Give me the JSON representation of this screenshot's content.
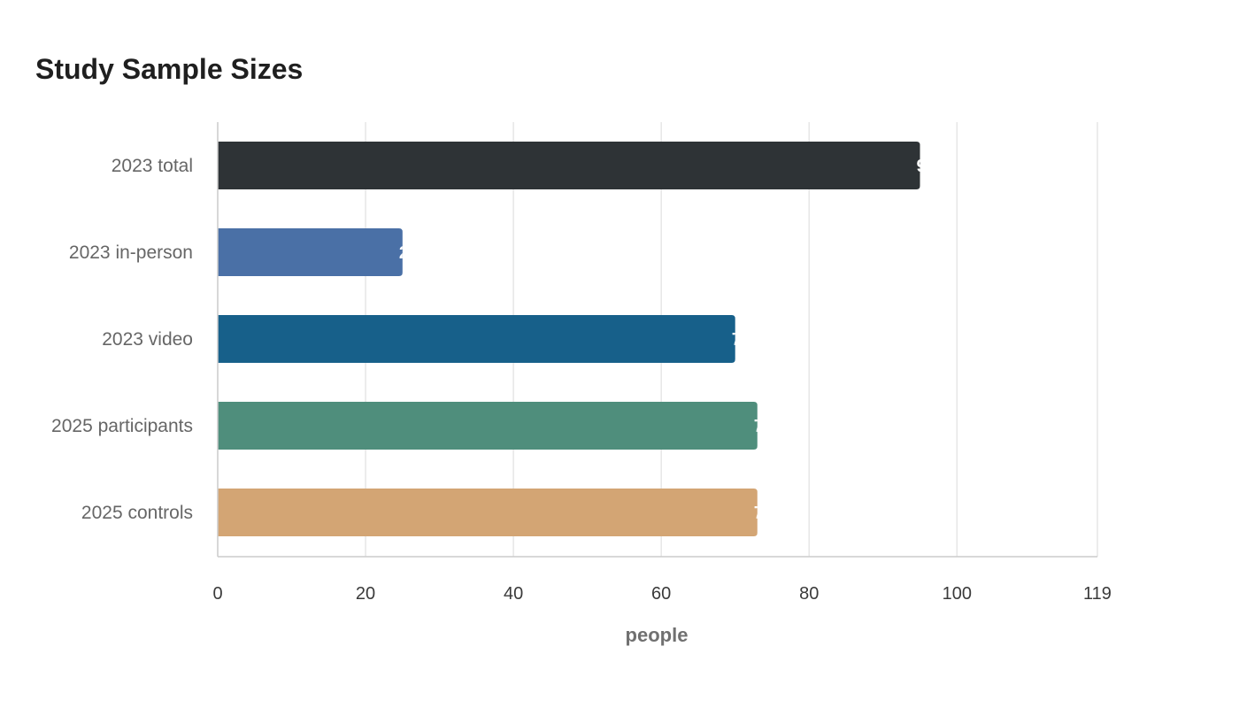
{
  "chart_data": {
    "type": "bar",
    "orientation": "horizontal",
    "title": "Study Sample Sizes",
    "xlabel": "people",
    "ylabel": "",
    "xlim": [
      0,
      119
    ],
    "xticks": [
      0,
      20,
      40,
      60,
      80,
      100,
      119
    ],
    "grid": true,
    "categories": [
      "2023 total",
      "2023 in-person",
      "2023 video",
      "2025 participants",
      "2025 controls"
    ],
    "values": [
      95,
      25,
      70,
      73,
      73
    ],
    "value_labels": [
      "95",
      "25",
      "70",
      "73",
      "73"
    ],
    "colors": [
      "#2e3336",
      "#4a70a6",
      "#17608a",
      "#4f8e7c",
      "#d3a574"
    ]
  }
}
